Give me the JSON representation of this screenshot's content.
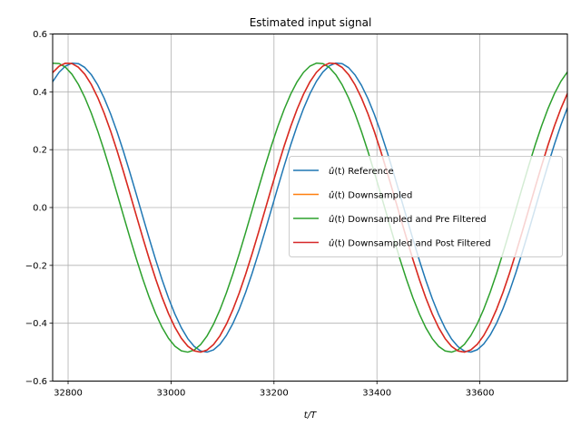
{
  "chart_data": {
    "type": "line",
    "title": "Estimated input signal",
    "xlabel": "t/T",
    "ylabel": "",
    "xlim": [
      32770,
      33770
    ],
    "ylim": [
      -0.6,
      0.6
    ],
    "xticks": [
      32800,
      33000,
      33200,
      33400,
      33600
    ],
    "yticks": [
      -0.6,
      -0.4,
      -0.2,
      0.0,
      0.2,
      0.4,
      0.6
    ],
    "xtick_labels": [
      "32800",
      "33000",
      "33200",
      "33400",
      "33600"
    ],
    "ytick_labels": [
      "−0.6",
      "−0.4",
      "−0.2",
      "0.0",
      "0.2",
      "0.4",
      "0.6"
    ],
    "grid": true,
    "legend_position": "center-right",
    "series": [
      {
        "name": "û(t) Reference",
        "name_math": "û",
        "name_rest": "(t) Reference",
        "color": "#1f77b4",
        "amplitude": 0.5,
        "period": 512,
        "peak_at": 32812
      },
      {
        "name": "û(t) Downsampled",
        "name_math": "û",
        "name_rest": "(t) Downsampled",
        "color": "#ff7f0e",
        "amplitude": 0.5,
        "period": 512,
        "peak_at": 32800
      },
      {
        "name": "û(t) Downsampled and Pre Filtered",
        "name_math": "û",
        "name_rest": "(t) Downsampled and Pre Filtered",
        "color": "#2ca02c",
        "amplitude": 0.5,
        "period": 512,
        "peak_at": 32775
      },
      {
        "name": "û(t) Downsampled and Post Filtered",
        "name_math": "û",
        "name_rest": "(t) Downsampled and Post Filtered",
        "color": "#d62728",
        "amplitude": 0.5,
        "period": 512,
        "peak_at": 32800
      }
    ]
  }
}
